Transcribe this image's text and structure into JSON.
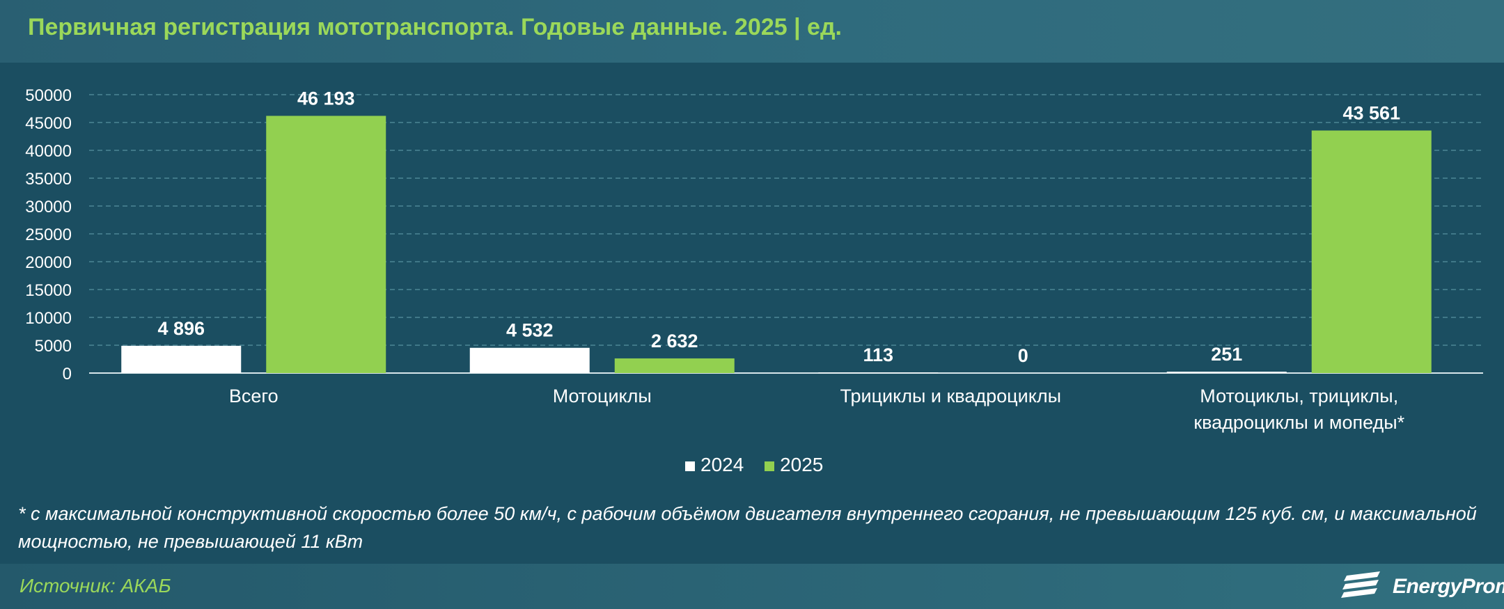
{
  "title": "Первичная регистрация мототранспорта. Годовые данные. 2025 | ед.",
  "chart_data": {
    "type": "bar",
    "categories": [
      [
        "Всего"
      ],
      [
        "Мотоциклы"
      ],
      [
        "Трициклы и квадроциклы"
      ],
      [
        "Мотоциклы, трициклы,",
        "квадроциклы и мопеды*"
      ]
    ],
    "series": [
      {
        "name": "2024",
        "color": "#ffffff",
        "values": [
          4896,
          4532,
          113,
          251
        ],
        "labels": [
          "4 896",
          "4 532",
          "113",
          "251"
        ]
      },
      {
        "name": "2025",
        "color": "#92d050",
        "values": [
          46193,
          2632,
          0,
          43561
        ],
        "labels": [
          "46 193",
          "2 632",
          "0",
          "43 561"
        ]
      }
    ],
    "ylim": [
      0,
      50000
    ],
    "yticks": [
      0,
      5000,
      10000,
      15000,
      20000,
      25000,
      30000,
      35000,
      40000,
      45000,
      50000
    ],
    "grid": true,
    "legend_position": "bottom"
  },
  "footnote": "* с максимальной конструктивной скоростью более 50 км/ч, с рабочим объёмом двигателя внутреннего сгорания, не превышающим 125 куб. см, и максимальной мощностью, не превышающей 11 кВт",
  "source": "Источник: АКАБ",
  "logo": {
    "text": "EnergyProm",
    "icon": "energyprom-logo-icon"
  }
}
